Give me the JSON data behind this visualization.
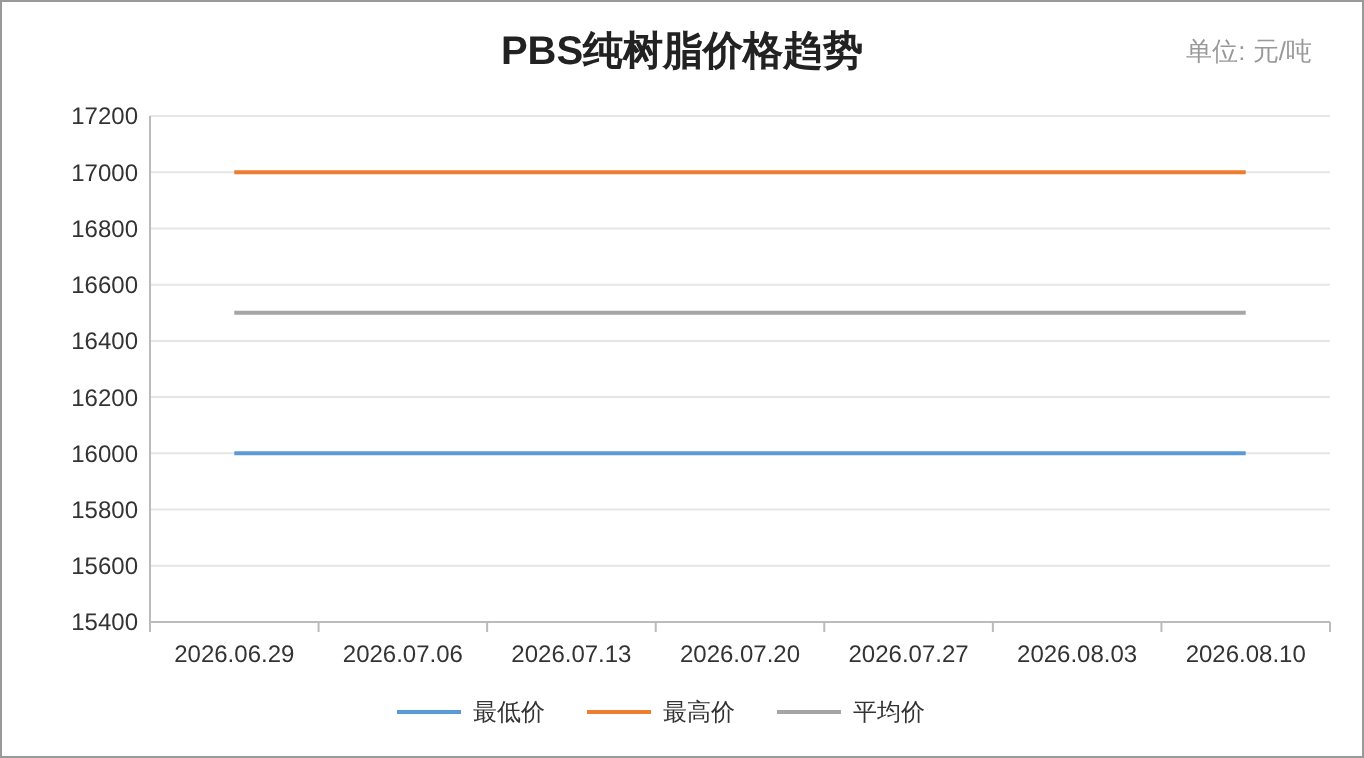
{
  "chart_data": {
    "type": "line",
    "title": "PBS纯树脂价格趋势",
    "annotations": [
      "单位: 元/吨"
    ],
    "categories": [
      "2026.06.29",
      "2026.07.06",
      "2026.07.13",
      "2026.07.20",
      "2026.07.27",
      "2026.08.03",
      "2026.08.10"
    ],
    "series": [
      {
        "name": "最低价",
        "color": "#5b9bd5",
        "values": [
          16000,
          16000,
          16000,
          16000,
          16000,
          16000,
          16000
        ]
      },
      {
        "name": "最高价",
        "color": "#ed7d31",
        "values": [
          17000,
          17000,
          17000,
          17000,
          17000,
          17000,
          17000
        ]
      },
      {
        "name": "平均价",
        "color": "#a5a5a5",
        "values": [
          16500,
          16500,
          16500,
          16500,
          16500,
          16500,
          16500
        ]
      }
    ],
    "ylim": [
      15400,
      17200
    ],
    "yticks": [
      15400,
      15600,
      15800,
      16000,
      16200,
      16400,
      16600,
      16800,
      17000,
      17200
    ],
    "grid": "y",
    "legend": "bottom",
    "marker": "none",
    "line_style": "solid"
  }
}
